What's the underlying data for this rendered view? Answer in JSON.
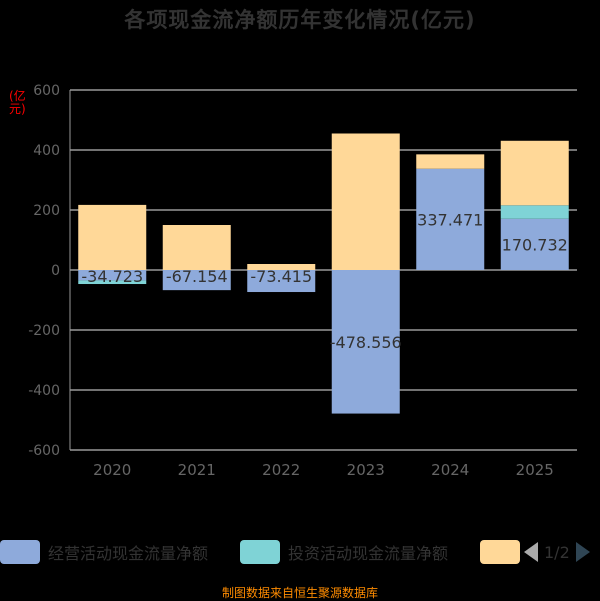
{
  "title": "各项现金流净额历年变化情况(亿元)",
  "unit_label": "(亿元)",
  "source": "制图数据来自恒生聚源数据库",
  "legend": {
    "page_text": "1/2",
    "items": [
      {
        "label": "经营活动现金流量净额",
        "color": "#8eaadb"
      },
      {
        "label": "投资活动现金流量净额",
        "color": "#7fd3d6"
      },
      {
        "label": "",
        "color": "#ffd898"
      }
    ]
  },
  "chart_data": {
    "type": "bar",
    "stacked": true,
    "categories": [
      "2020",
      "2021",
      "2022",
      "2023",
      "2024",
      "2025"
    ],
    "ylim": [
      -600,
      600
    ],
    "yticks": [
      -600,
      -400,
      -200,
      0,
      200,
      400,
      600
    ],
    "grid": true,
    "series": [
      {
        "name": "经营活动现金流量净额",
        "color": "#8eaadb",
        "values": [
          -34.723,
          -67.154,
          -73.415,
          -478.556,
          337.471,
          170.732
        ]
      },
      {
        "name": "投资活动现金流量净额",
        "color": "#7fd3d6",
        "values": [
          -12,
          0,
          0,
          0,
          0,
          45
        ]
      },
      {
        "name": "",
        "color": "#ffd898",
        "values": [
          217,
          150,
          20,
          455,
          48,
          215
        ]
      }
    ],
    "data_labels": [
      "-34.723",
      "-67.154",
      "-73.415",
      "-478.556",
      "337.471",
      "170.732"
    ]
  }
}
